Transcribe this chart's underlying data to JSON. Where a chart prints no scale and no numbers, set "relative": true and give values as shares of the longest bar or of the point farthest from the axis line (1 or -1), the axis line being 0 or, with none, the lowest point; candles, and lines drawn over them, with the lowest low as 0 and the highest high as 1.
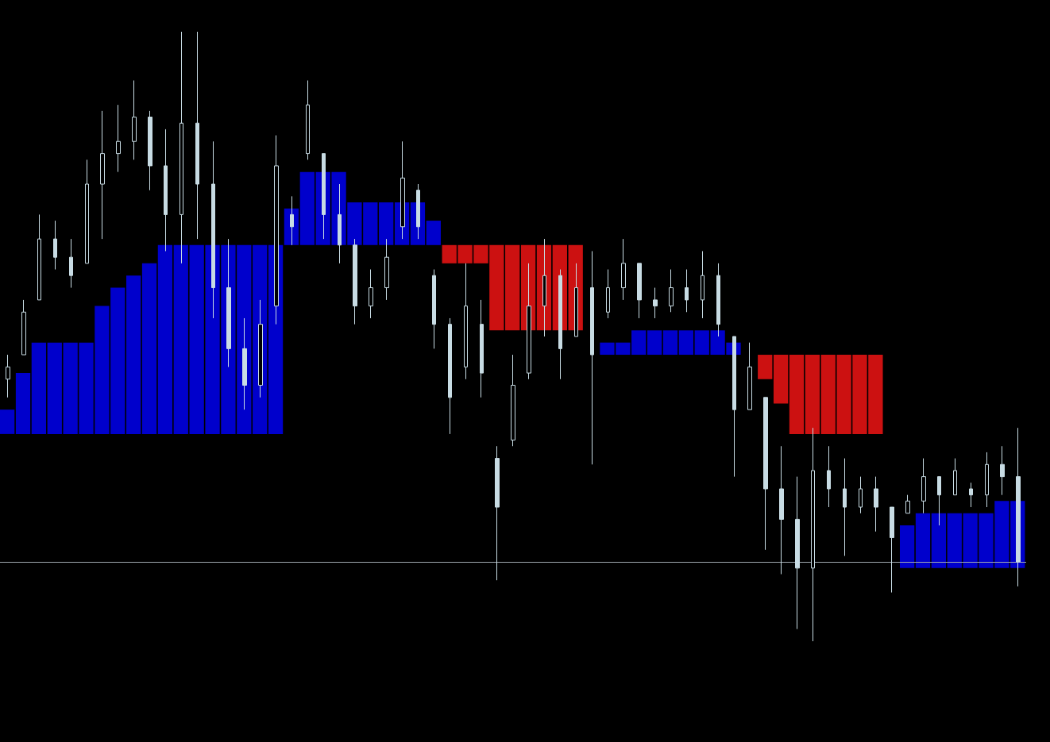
{
  "chart_data": {
    "type": "candlestick",
    "relative": true,
    "tick_labels": false,
    "categories": [
      null,
      null,
      null,
      null,
      null,
      null,
      null,
      null,
      null,
      null,
      null,
      null,
      null,
      null,
      null,
      null,
      null,
      null,
      null,
      null,
      null,
      null,
      null,
      null,
      null,
      null,
      null,
      null,
      null,
      null,
      null,
      null,
      null,
      null,
      null,
      null,
      null,
      null,
      null,
      null,
      null,
      null,
      null,
      null,
      null,
      null,
      null,
      null,
      null,
      null,
      null,
      null,
      null,
      null,
      null,
      null,
      null,
      null,
      null,
      null,
      null,
      null,
      null,
      null,
      null
    ],
    "series": [
      {
        "type": "bar",
        "color": "#0000cc",
        "base": [
          0.34,
          0.34,
          0.34,
          0.34,
          0.34,
          0.34,
          0.34,
          0.34,
          0.34,
          0.34,
          0.34,
          0.34,
          0.34,
          0.34,
          0.34,
          0.34,
          0.34,
          0.34,
          0.65,
          0.65,
          0.65,
          0.65,
          0.65,
          0.65,
          0.65,
          0.65,
          0.65,
          0.65,
          null,
          null,
          null,
          null,
          null,
          null,
          null,
          null,
          null,
          null,
          0.47,
          0.47,
          0.47,
          0.47,
          0.47,
          0.47,
          0.47,
          0.47,
          0.47,
          null,
          null,
          null,
          null,
          null,
          null,
          null,
          null,
          null,
          null,
          0.12,
          0.12,
          0.12,
          0.12,
          0.12,
          0.12,
          0.12,
          0.12
        ],
        "values": [
          0.04,
          0.1,
          0.15,
          0.15,
          0.15,
          0.15,
          0.21,
          0.24,
          0.26,
          0.28,
          0.31,
          0.31,
          0.31,
          0.31,
          0.31,
          0.31,
          0.31,
          0.31,
          0.06,
          0.12,
          0.12,
          0.12,
          0.07,
          0.07,
          0.07,
          0.07,
          0.07,
          0.04,
          null,
          null,
          null,
          null,
          null,
          null,
          null,
          null,
          null,
          null,
          0.02,
          0.02,
          0.04,
          0.04,
          0.04,
          0.04,
          0.04,
          0.04,
          0.02,
          null,
          null,
          null,
          null,
          null,
          null,
          null,
          null,
          null,
          null,
          0.07,
          0.09,
          0.09,
          0.09,
          0.09,
          0.09,
          0.11,
          0.11
        ]
      },
      {
        "type": "bar",
        "color": "#cc1111",
        "base": [
          null,
          null,
          null,
          null,
          null,
          null,
          null,
          null,
          null,
          null,
          null,
          null,
          null,
          null,
          null,
          null,
          null,
          null,
          null,
          null,
          null,
          null,
          null,
          null,
          null,
          null,
          null,
          null,
          0.62,
          0.62,
          0.62,
          0.51,
          0.51,
          0.51,
          0.51,
          0.51,
          0.51,
          null,
          null,
          null,
          null,
          null,
          null,
          null,
          null,
          null,
          null,
          null,
          0.43,
          0.39,
          0.34,
          0.34,
          0.34,
          0.34,
          0.34,
          0.34,
          null,
          null,
          null,
          null,
          null,
          null,
          null,
          null,
          null
        ],
        "values": [
          null,
          null,
          null,
          null,
          null,
          null,
          null,
          null,
          null,
          null,
          null,
          null,
          null,
          null,
          null,
          null,
          null,
          null,
          null,
          null,
          null,
          null,
          null,
          null,
          null,
          null,
          null,
          null,
          0.03,
          0.03,
          0.03,
          0.14,
          0.14,
          0.14,
          0.14,
          0.14,
          0.14,
          null,
          null,
          null,
          null,
          null,
          null,
          null,
          null,
          null,
          null,
          null,
          0.04,
          0.08,
          0.13,
          0.13,
          0.13,
          0.13,
          0.13,
          0.13,
          null,
          null,
          null,
          null,
          null,
          null,
          null,
          null,
          null
        ]
      },
      {
        "color": "#c8dce4",
        "ohlc": [
          [
            0.43,
            0.47,
            0.4,
            0.45
          ],
          [
            0.47,
            0.56,
            0.47,
            0.54
          ],
          [
            0.56,
            0.7,
            0.56,
            0.66
          ],
          [
            0.66,
            0.69,
            0.61,
            0.63
          ],
          [
            0.63,
            0.66,
            0.58,
            0.6
          ],
          [
            0.62,
            0.79,
            0.62,
            0.75
          ],
          [
            0.75,
            0.87,
            0.66,
            0.8
          ],
          [
            0.8,
            0.88,
            0.77,
            0.82
          ],
          [
            0.82,
            0.92,
            0.79,
            0.86
          ],
          [
            0.86,
            0.87,
            0.74,
            0.78
          ],
          [
            0.78,
            0.84,
            0.64,
            0.7
          ],
          [
            0.7,
            1.0,
            0.62,
            0.85
          ],
          [
            0.85,
            1.0,
            0.66,
            0.75
          ],
          [
            0.75,
            0.82,
            0.53,
            0.58
          ],
          [
            0.58,
            0.66,
            0.45,
            0.48
          ],
          [
            0.48,
            0.53,
            0.38,
            0.42
          ],
          [
            0.42,
            0.56,
            0.4,
            0.52
          ],
          [
            0.55,
            0.83,
            0.52,
            0.78
          ],
          [
            0.7,
            0.73,
            0.65,
            0.68
          ],
          [
            0.8,
            0.92,
            0.79,
            0.88
          ],
          [
            0.8,
            0.8,
            0.66,
            0.7
          ],
          [
            0.7,
            0.75,
            0.62,
            0.65
          ],
          [
            0.65,
            0.66,
            0.52,
            0.55
          ],
          [
            0.55,
            0.61,
            0.53,
            0.58
          ],
          [
            0.58,
            0.66,
            0.56,
            0.63
          ],
          [
            0.68,
            0.82,
            0.66,
            0.76
          ],
          [
            0.74,
            0.75,
            0.66,
            0.68
          ],
          [
            0.6,
            0.61,
            0.48,
            0.52
          ],
          [
            0.52,
            0.53,
            0.34,
            0.4
          ],
          [
            0.45,
            0.62,
            0.43,
            0.55
          ],
          [
            0.52,
            0.56,
            0.4,
            0.44
          ],
          [
            0.3,
            0.32,
            0.1,
            0.22
          ],
          [
            0.33,
            0.47,
            0.32,
            0.42
          ],
          [
            0.44,
            0.62,
            0.43,
            0.55
          ],
          [
            0.55,
            0.66,
            0.5,
            0.6
          ],
          [
            0.6,
            0.61,
            0.43,
            0.48
          ],
          [
            0.5,
            0.62,
            0.5,
            0.58
          ],
          [
            0.58,
            0.64,
            0.29,
            0.47
          ],
          [
            0.54,
            0.61,
            0.53,
            0.58
          ],
          [
            0.58,
            0.66,
            0.56,
            0.62
          ],
          [
            0.62,
            0.62,
            0.53,
            0.56
          ],
          [
            0.56,
            0.58,
            0.53,
            0.55
          ],
          [
            0.55,
            0.61,
            0.54,
            0.58
          ],
          [
            0.58,
            0.61,
            0.54,
            0.56
          ],
          [
            0.56,
            0.64,
            0.53,
            0.6
          ],
          [
            0.6,
            0.62,
            0.5,
            0.52
          ],
          [
            0.5,
            0.5,
            0.27,
            0.38
          ],
          [
            0.38,
            0.49,
            0.38,
            0.45
          ],
          [
            0.4,
            0.4,
            0.15,
            0.25
          ],
          [
            0.25,
            0.32,
            0.11,
            0.2
          ],
          [
            0.2,
            0.27,
            0.02,
            0.12
          ],
          [
            0.12,
            0.35,
            0.0,
            0.28
          ],
          [
            0.28,
            0.32,
            0.22,
            0.25
          ],
          [
            0.25,
            0.3,
            0.14,
            0.22
          ],
          [
            0.22,
            0.27,
            0.21,
            0.25
          ],
          [
            0.25,
            0.27,
            0.18,
            0.22
          ],
          [
            0.22,
            0.22,
            0.08,
            0.17
          ],
          [
            0.21,
            0.24,
            0.21,
            0.23
          ],
          [
            0.23,
            0.3,
            0.21,
            0.27
          ],
          [
            0.27,
            0.27,
            0.19,
            0.24
          ],
          [
            0.24,
            0.3,
            0.24,
            0.28
          ],
          [
            0.25,
            0.26,
            0.22,
            0.24
          ],
          [
            0.24,
            0.31,
            0.22,
            0.29
          ],
          [
            0.29,
            0.32,
            0.24,
            0.27
          ],
          [
            0.27,
            0.35,
            0.09,
            0.13
          ]
        ]
      }
    ],
    "ref_lines": [
      {
        "axis": "y",
        "value": 0.13,
        "label": null,
        "color": "#a0a8b0"
      }
    ]
  }
}
